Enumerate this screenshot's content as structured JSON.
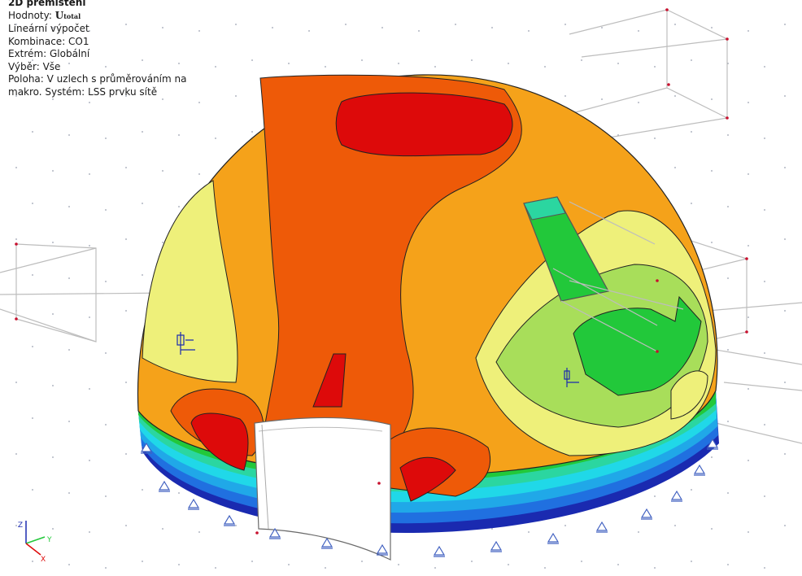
{
  "info": {
    "title": "2D přemístění",
    "values_label": "Hodnoty:",
    "values_symbol": "U",
    "values_subscript": "total",
    "calc": "Lineární výpočet",
    "combination": "Kombinace: CO1",
    "extreme": "Extrém: Globální",
    "selection": "Výběr: Vše",
    "position_line1": "Poloha: V uzlech s průměrováním na",
    "position_line2": "makro. Systém: LSS prvku sítě"
  },
  "axes": {
    "x": "X",
    "y": "Y",
    "z": "Z"
  },
  "colors": {
    "red": "#dd0a0a",
    "red_orange": "#ee5a08",
    "orange": "#f5a21a",
    "yellow": "#eef07a",
    "light_green": "#a8de5a",
    "green": "#22c83a",
    "teal": "#2bd6a0",
    "cyan": "#20d8e8",
    "blue": "#2070e0",
    "dark_blue": "#1a2ab0",
    "support": "#4060c0",
    "node": "#c8102e"
  }
}
